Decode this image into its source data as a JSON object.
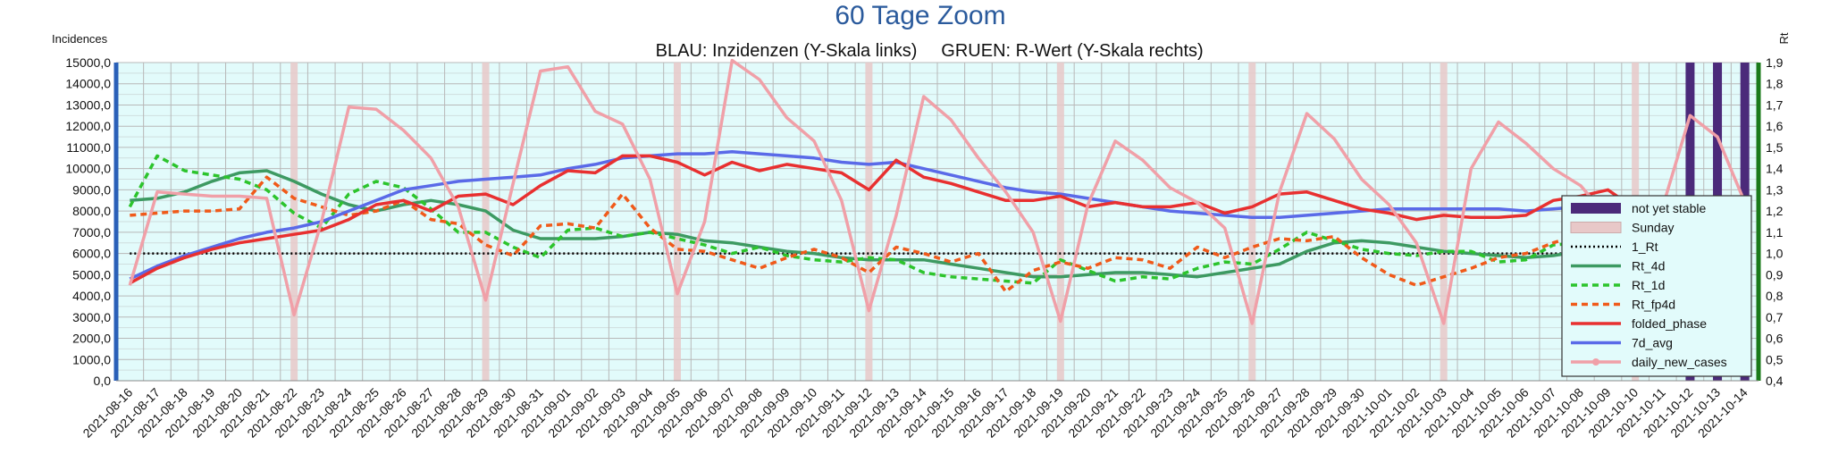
{
  "chart_data": {
    "type": "line",
    "title": "60 Tage Zoom",
    "subtitle_left": "BLAU: Inzidenzen (Y-Skala links)",
    "subtitle_right": "GRUEN: R-Wert (Y-Skala rechts)",
    "ylabel_left": "Incidences",
    "ylabel_right": "Rt",
    "ylim_left": [
      0,
      15000
    ],
    "ylim_right": [
      0.4,
      1.9
    ],
    "yticks_left": [
      "0,0",
      "1000,0",
      "2000,0",
      "3000,0",
      "4000,0",
      "5000,0",
      "6000,0",
      "7000,0",
      "8000,0",
      "9000,0",
      "10000,0",
      "11000,0",
      "12000,0",
      "13000,0",
      "14000,0",
      "15000,0"
    ],
    "yticks_right": [
      "0,4",
      "0,5",
      "0,6",
      "0,7",
      "0,8",
      "0,9",
      "1,0",
      "1,1",
      "1,2",
      "1,3",
      "1,4",
      "1,5",
      "1,6",
      "1,7",
      "1,8",
      "1,9"
    ],
    "grid": true,
    "legend_position": "right",
    "x": [
      "2021-08-16",
      "2021-08-17",
      "2021-08-18",
      "2021-08-19",
      "2021-08-20",
      "2021-08-21",
      "2021-08-22",
      "2021-08-23",
      "2021-08-24",
      "2021-08-25",
      "2021-08-26",
      "2021-08-27",
      "2021-08-28",
      "2021-08-29",
      "2021-08-30",
      "2021-08-31",
      "2021-09-01",
      "2021-09-02",
      "2021-09-03",
      "2021-09-04",
      "2021-09-05",
      "2021-09-06",
      "2021-09-07",
      "2021-09-08",
      "2021-09-09",
      "2021-09-10",
      "2021-09-11",
      "2021-09-12",
      "2021-09-13",
      "2021-09-14",
      "2021-09-15",
      "2021-09-16",
      "2021-09-17",
      "2021-09-18",
      "2021-09-19",
      "2021-09-20",
      "2021-09-21",
      "2021-09-22",
      "2021-09-23",
      "2021-09-24",
      "2021-09-25",
      "2021-09-26",
      "2021-09-27",
      "2021-09-28",
      "2021-09-29",
      "2021-09-30",
      "2021-10-01",
      "2021-10-02",
      "2021-10-03",
      "2021-10-04",
      "2021-10-05",
      "2021-10-06",
      "2021-10-07",
      "2021-10-08",
      "2021-10-09",
      "2021-10-10",
      "2021-10-11",
      "2021-10-12",
      "2021-10-13",
      "2021-10-14"
    ],
    "sundays": [
      "2021-08-22",
      "2021-08-29",
      "2021-09-05",
      "2021-09-12",
      "2021-09-19",
      "2021-09-26",
      "2021-10-03",
      "2021-10-10"
    ],
    "not_yet_stable": [
      "2021-10-12",
      "2021-10-13",
      "2021-10-14"
    ],
    "series": [
      {
        "name": "not yet stable",
        "color": "#4b2a7a",
        "kind": "band"
      },
      {
        "name": "Sunday",
        "color": "#e8c8c8",
        "kind": "band"
      },
      {
        "name": "1_Rt",
        "color": "#000000",
        "kind": "dotted",
        "axis": "right",
        "values": [
          1.0,
          1.0,
          1.0,
          1.0,
          1.0,
          1.0,
          1.0,
          1.0,
          1.0,
          1.0,
          1.0,
          1.0,
          1.0,
          1.0,
          1.0,
          1.0,
          1.0,
          1.0,
          1.0,
          1.0,
          1.0,
          1.0,
          1.0,
          1.0,
          1.0,
          1.0,
          1.0,
          1.0,
          1.0,
          1.0,
          1.0,
          1.0,
          1.0,
          1.0,
          1.0,
          1.0,
          1.0,
          1.0,
          1.0,
          1.0,
          1.0,
          1.0,
          1.0,
          1.0,
          1.0,
          1.0,
          1.0,
          1.0,
          1.0,
          1.0,
          1.0,
          1.0,
          1.0,
          1.0,
          1.0,
          1.0,
          1.0,
          1.0,
          1.0,
          1.0
        ]
      },
      {
        "name": "Rt_4d",
        "color": "#3d9a62",
        "kind": "solid",
        "axis": "right",
        "values": [
          1.25,
          1.26,
          1.29,
          1.34,
          1.38,
          1.39,
          1.34,
          1.28,
          1.23,
          1.2,
          1.23,
          1.25,
          1.23,
          1.2,
          1.11,
          1.07,
          1.07,
          1.07,
          1.08,
          1.1,
          1.09,
          1.06,
          1.05,
          1.03,
          1.01,
          1.0,
          0.98,
          0.97,
          0.97,
          0.97,
          0.95,
          0.93,
          0.91,
          0.89,
          0.89,
          0.9,
          0.91,
          0.91,
          0.9,
          0.89,
          0.91,
          0.93,
          0.95,
          1.01,
          1.05,
          1.06,
          1.05,
          1.03,
          1.01,
          1.0,
          0.99,
          0.98,
          0.99,
          1.01,
          1.03,
          1.04,
          1.03,
          1.02,
          1.03,
          0.99
        ]
      },
      {
        "name": "Rt_1d",
        "color": "#2cc42c",
        "kind": "dashed",
        "axis": "right",
        "values": [
          1.22,
          1.46,
          1.39,
          1.37,
          1.35,
          1.3,
          1.19,
          1.12,
          1.28,
          1.34,
          1.31,
          1.21,
          1.1,
          1.1,
          1.03,
          0.98,
          1.11,
          1.12,
          1.08,
          1.1,
          1.07,
          1.04,
          1.0,
          1.03,
          0.99,
          0.97,
          0.96,
          0.98,
          0.97,
          0.91,
          0.89,
          0.88,
          0.87,
          0.86,
          0.97,
          0.92,
          0.87,
          0.89,
          0.88,
          0.93,
          0.96,
          0.95,
          1.02,
          1.1,
          1.06,
          1.02,
          1.0,
          0.99,
          1.01,
          1.01,
          0.96,
          0.97,
          1.04,
          1.05,
          1.06,
          1.04,
          1.0,
          1.02,
          1.03,
          0.87
        ]
      },
      {
        "name": "Rt_fp4d",
        "color": "#f05a1a",
        "kind": "dashed",
        "axis": "right",
        "values": [
          1.18,
          1.19,
          1.2,
          1.2,
          1.21,
          1.36,
          1.26,
          1.22,
          1.18,
          1.2,
          1.25,
          1.16,
          1.14,
          1.04,
          0.99,
          1.13,
          1.14,
          1.12,
          1.28,
          1.12,
          1.02,
          1.01,
          0.97,
          0.93,
          0.98,
          1.02,
          0.98,
          0.91,
          1.03,
          1.0,
          0.96,
          1.0,
          0.82,
          0.92,
          0.96,
          0.93,
          0.98,
          0.97,
          0.93,
          1.03,
          0.98,
          1.03,
          1.07,
          1.06,
          1.08,
          0.98,
          0.9,
          0.85,
          0.89,
          0.93,
          0.98,
          1.0,
          1.05,
          1.09,
          1.15,
          1.05,
          1.02,
          0.97,
          0.94,
          0.92
        ]
      },
      {
        "name": "folded_phase",
        "color": "#e83030",
        "kind": "solid",
        "axis": "left",
        "values": [
          4600,
          5300,
          5800,
          6200,
          6500,
          6700,
          6900,
          7100,
          7600,
          8300,
          8500,
          8000,
          8700,
          8800,
          8300,
          9200,
          9900,
          9800,
          10600,
          10600,
          10300,
          9700,
          10300,
          9900,
          10200,
          10000,
          9800,
          9000,
          10400,
          9600,
          9300,
          8900,
          8500,
          8500,
          8700,
          8200,
          8400,
          8200,
          8200,
          8400,
          7900,
          8200,
          8800,
          8900,
          8500,
          8100,
          7900,
          7600,
          7800,
          7700,
          7700,
          7800,
          8500,
          8700,
          9000,
          8100,
          8600,
          8200,
          8300,
          7000
        ]
      },
      {
        "name": "7d_avg",
        "color": "#5a6ae8",
        "kind": "solid",
        "axis": "left",
        "values": [
          4800,
          5400,
          5900,
          6300,
          6700,
          7000,
          7200,
          7500,
          8000,
          8500,
          9000,
          9200,
          9400,
          9500,
          9600,
          9700,
          10000,
          10200,
          10500,
          10600,
          10700,
          10700,
          10800,
          10700,
          10600,
          10500,
          10300,
          10200,
          10300,
          10000,
          9700,
          9400,
          9100,
          8900,
          8800,
          8600,
          8400,
          8200,
          8000,
          7900,
          7800,
          7700,
          7700,
          7800,
          7900,
          8000,
          8100,
          8100,
          8100,
          8100,
          8100,
          8000,
          8100,
          8200,
          8300,
          8300,
          8300,
          8400,
          8400,
          8300
        ]
      },
      {
        "name": "daily_new_cases",
        "color": "#f0a0a8",
        "kind": "marker",
        "axis": "left",
        "values": [
          4500,
          8900,
          8800,
          8700,
          8700,
          8600,
          3100,
          7500,
          12900,
          12800,
          11800,
          10500,
          8200,
          3800,
          9300,
          14600,
          14800,
          12700,
          12100,
          9500,
          4100,
          7500,
          15100,
          14200,
          12400,
          11300,
          8500,
          3300,
          7800,
          13400,
          12300,
          10500,
          8900,
          7000,
          2800,
          8300,
          11300,
          10400,
          9100,
          8400,
          7200,
          2700,
          8900,
          12600,
          11400,
          9500,
          8300,
          6500,
          2700,
          10000,
          12200,
          11200,
          10000,
          9200,
          7700,
          2700,
          8200,
          12500,
          11500,
          8400
        ]
      }
    ]
  }
}
